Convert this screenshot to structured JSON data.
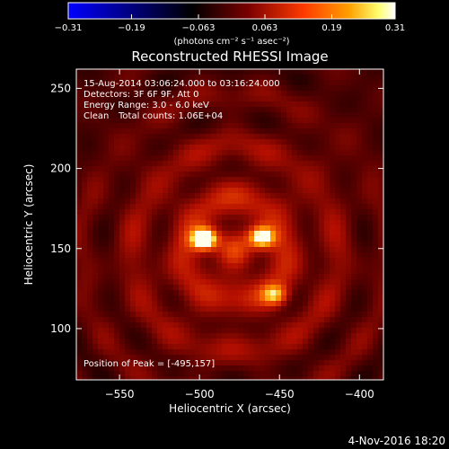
{
  "chart_data": {
    "type": "heatmap",
    "title": "Reconstructed RHESSI Image",
    "xlabel": "Heliocentric X (arcsec)",
    "ylabel": "Heliocentric Y (arcsec)",
    "xlim": [
      -577,
      -385
    ],
    "ylim": [
      68,
      262
    ],
    "x_ticks": [
      -550,
      -500,
      -450,
      -400
    ],
    "y_ticks": [
      100,
      150,
      200,
      250
    ],
    "colorbar": {
      "min": -0.31,
      "max": 0.31,
      "ticks": [
        -0.31,
        -0.19,
        -0.063,
        0.063,
        0.19,
        0.31
      ],
      "tick_labels": [
        "−0.31",
        "−0.19",
        "−0.063",
        "0.063",
        "0.19",
        "0.31"
      ],
      "units": "(photons cm⁻² s⁻¹ asec⁻²)",
      "colormap": [
        "#0000ff",
        "#000000",
        "#7a0000",
        "#ff3a00",
        "#ffa000",
        "#ffff70",
        "#ffffff"
      ]
    },
    "sources": [
      {
        "x": -497,
        "y": 156,
        "peak": 0.31
      },
      {
        "x": -461,
        "y": 157,
        "peak": 0.25
      },
      {
        "x": -453,
        "y": 121,
        "peak": 0.16
      }
    ],
    "annotations": {
      "time_range": "15-Aug-2014 03:06:24.000 to 03:16:24.000",
      "detectors": "Detectors: 3F 6F 9F, Att 0",
      "energy_range": "Energy Range: 3.0 - 6.0 keV",
      "clean_label": "Clean",
      "total_counts": "Total counts: 1.06E+04",
      "peak_position": "Position of Peak = [-495,157]"
    },
    "x_tick_labels": [
      "−550",
      "−500",
      "−450",
      "−400"
    ],
    "y_tick_labels": [
      "100",
      "150",
      "200",
      "250"
    ]
  },
  "footer": {
    "date": "4-Nov-2016 18:20"
  }
}
